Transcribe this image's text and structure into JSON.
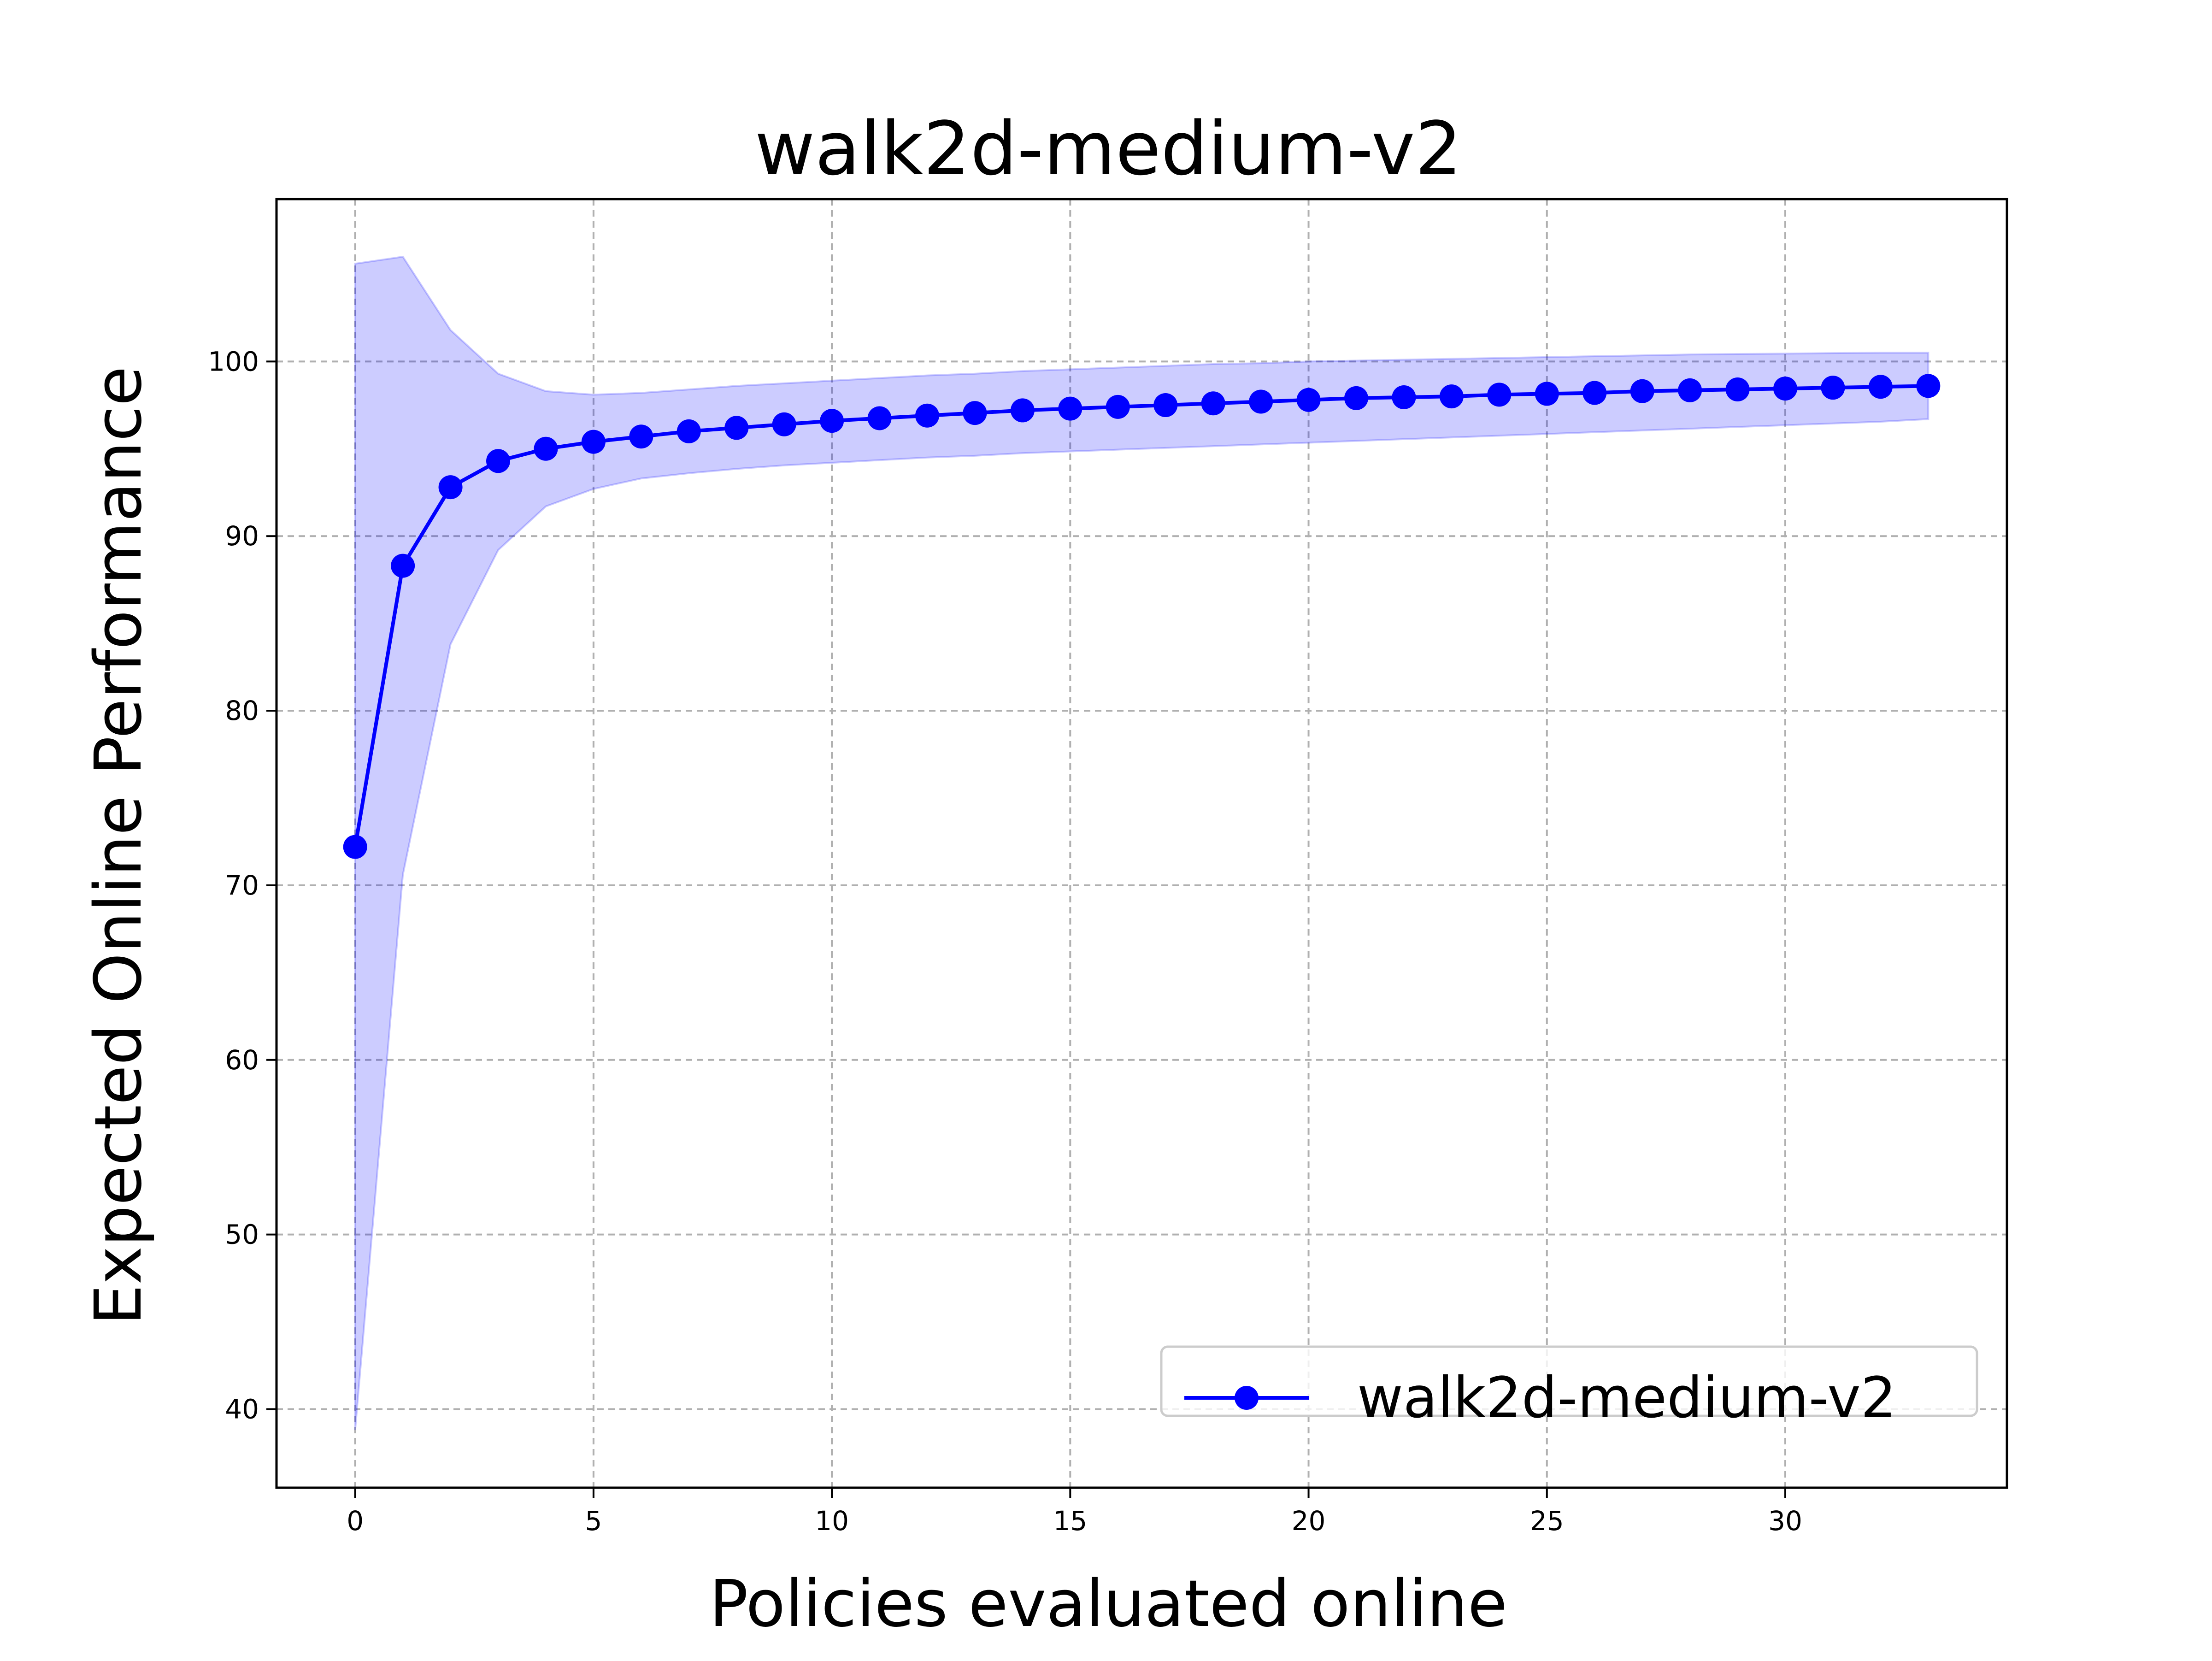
{
  "chart_data": {
    "type": "line",
    "title": "walk2d-medium-v2",
    "xlabel": "Policies evaluated online",
    "ylabel": "Expected Online Performance",
    "xlim": [
      -1.65,
      34.65
    ],
    "ylim": [
      35.5,
      109.3
    ],
    "xticks": [
      0,
      5,
      10,
      15,
      20,
      25,
      30
    ],
    "yticks": [
      40,
      50,
      60,
      70,
      80,
      90,
      100
    ],
    "grid": true,
    "legend_position": "lower-right",
    "series": [
      {
        "name": "walk2d-medium-v2",
        "color": "#0000ff",
        "band_color": "#0000ff",
        "marker": "circle",
        "x": [
          0,
          1,
          2,
          3,
          4,
          5,
          6,
          7,
          8,
          9,
          10,
          11,
          12,
          13,
          14,
          15,
          16,
          17,
          18,
          19,
          20,
          21,
          22,
          23,
          24,
          25,
          26,
          27,
          28,
          29,
          30,
          31,
          32,
          33
        ],
        "y": [
          72.2,
          88.3,
          92.8,
          94.3,
          95.0,
          95.4,
          95.7,
          96.0,
          96.2,
          96.4,
          96.6,
          96.75,
          96.9,
          97.05,
          97.2,
          97.3,
          97.4,
          97.5,
          97.6,
          97.7,
          97.8,
          97.9,
          97.95,
          98.0,
          98.1,
          98.15,
          98.2,
          98.3,
          98.35,
          98.4,
          98.45,
          98.5,
          98.55,
          98.6
        ],
        "upper": [
          105.6,
          106.0,
          101.8,
          99.3,
          98.3,
          98.1,
          98.2,
          98.4,
          98.6,
          98.75,
          98.9,
          99.05,
          99.2,
          99.3,
          99.45,
          99.55,
          99.65,
          99.75,
          99.85,
          99.9,
          100.0,
          100.05,
          100.1,
          100.15,
          100.2,
          100.25,
          100.3,
          100.35,
          100.4,
          100.43,
          100.45,
          100.48,
          100.5,
          100.5
        ],
        "lower": [
          38.8,
          70.6,
          83.8,
          89.2,
          91.7,
          92.7,
          93.3,
          93.6,
          93.85,
          94.05,
          94.2,
          94.35,
          94.5,
          94.6,
          94.75,
          94.85,
          94.95,
          95.05,
          95.15,
          95.25,
          95.35,
          95.45,
          95.55,
          95.65,
          95.75,
          95.85,
          95.95,
          96.05,
          96.15,
          96.25,
          96.35,
          96.45,
          96.55,
          96.7
        ]
      }
    ]
  }
}
